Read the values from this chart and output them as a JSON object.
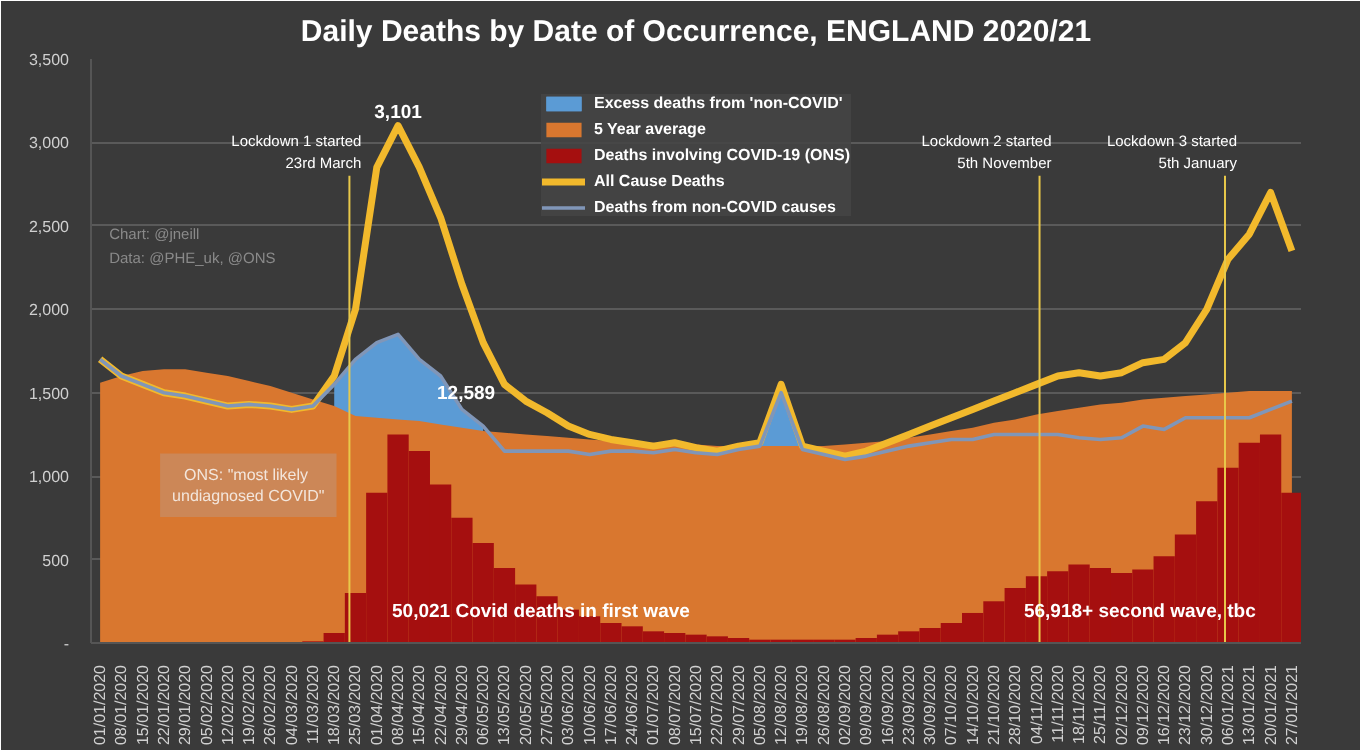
{
  "chart_data": {
    "type": "line",
    "title": "Daily Deaths by Date of Occurrence, ENGLAND 2020/21",
    "x": [
      "2020-01-01",
      "2020-01-08",
      "2020-01-15",
      "2020-01-22",
      "2020-01-29",
      "2020-02-05",
      "2020-02-12",
      "2020-02-19",
      "2020-02-26",
      "2020-03-04",
      "2020-03-11",
      "2020-03-18",
      "2020-03-25",
      "2020-04-01",
      "2020-04-08",
      "2020-04-15",
      "2020-04-22",
      "2020-04-29",
      "2020-05-06",
      "2020-05-13",
      "2020-05-20",
      "2020-05-27",
      "2020-06-03",
      "2020-06-10",
      "2020-06-17",
      "2020-06-24",
      "2020-07-01",
      "2020-07-08",
      "2020-07-15",
      "2020-07-22",
      "2020-07-29",
      "2020-08-05",
      "2020-08-12",
      "2020-08-19",
      "2020-08-26",
      "2020-09-02",
      "2020-09-09",
      "2020-09-16",
      "2020-09-23",
      "2020-09-30",
      "2020-10-07",
      "2020-10-14",
      "2020-10-21",
      "2020-10-28",
      "2020-11-04",
      "2020-11-11",
      "2020-11-18",
      "2020-11-25",
      "2020-12-02",
      "2020-12-09",
      "2020-12-16",
      "2020-12-23",
      "2020-12-30",
      "2021-01-06",
      "2021-01-13",
      "2021-01-20",
      "2021-01-27"
    ],
    "series": [
      {
        "name": "Excess deaths from 'non-COVID'",
        "type": "area",
        "color": "#5b9bd5",
        "values": [
          null,
          null,
          null,
          null,
          null,
          null,
          null,
          null,
          null,
          null,
          null,
          1550,
          1700,
          1800,
          1850,
          1700,
          1600,
          1400,
          1300,
          null,
          null,
          null,
          null,
          null,
          null,
          null,
          null,
          null,
          null,
          null,
          null,
          1200,
          1500,
          1200,
          null,
          null,
          null,
          null,
          null,
          null,
          null,
          null,
          null,
          null,
          null,
          null,
          null,
          null,
          null,
          null,
          null,
          null,
          null,
          null,
          null,
          null,
          null
        ]
      },
      {
        "name": "5 Year average",
        "type": "area",
        "color": "#d9772f",
        "values": [
          1560,
          1600,
          1630,
          1640,
          1640,
          1620,
          1600,
          1570,
          1540,
          1500,
          1460,
          1420,
          1360,
          1350,
          1340,
          1330,
          1310,
          1290,
          1270,
          1260,
          1250,
          1240,
          1230,
          1220,
          1210,
          1200,
          1200,
          1190,
          1190,
          1180,
          1180,
          1180,
          1180,
          1180,
          1180,
          1190,
          1200,
          1210,
          1230,
          1250,
          1270,
          1290,
          1320,
          1340,
          1370,
          1390,
          1410,
          1430,
          1440,
          1460,
          1470,
          1480,
          1490,
          1500,
          1510,
          1510,
          1510
        ]
      },
      {
        "name": "Deaths involving COVID-19 (ONS)",
        "type": "bar",
        "color": "#a50f0f",
        "values": [
          0,
          0,
          0,
          0,
          0,
          0,
          0,
          0,
          0,
          0,
          10,
          60,
          300,
          900,
          1250,
          1150,
          950,
          750,
          600,
          450,
          350,
          280,
          200,
          160,
          120,
          100,
          70,
          60,
          50,
          40,
          30,
          20,
          20,
          20,
          20,
          20,
          30,
          50,
          70,
          90,
          120,
          180,
          250,
          330,
          400,
          430,
          470,
          450,
          420,
          440,
          520,
          650,
          850,
          1050,
          1200,
          1250,
          900
        ]
      },
      {
        "name": "All Cause Deaths",
        "color": "#f2b92c",
        "values": [
          1700,
          1600,
          1550,
          1500,
          1480,
          1450,
          1420,
          1430,
          1420,
          1400,
          1420,
          1600,
          2000,
          2850,
          3101,
          2850,
          2550,
          2150,
          1800,
          1550,
          1450,
          1380,
          1300,
          1250,
          1220,
          1200,
          1180,
          1200,
          1170,
          1150,
          1180,
          1200,
          1550,
          1180,
          1150,
          1120,
          1150,
          1200,
          1250,
          1300,
          1350,
          1400,
          1450,
          1500,
          1550,
          1600,
          1620,
          1600,
          1620,
          1680,
          1700,
          1800,
          2000,
          2300,
          2450,
          2700,
          2350
        ]
      },
      {
        "name": "Deaths from non-COVID causes",
        "color": "#8096b8",
        "values": [
          1700,
          1600,
          1550,
          1500,
          1480,
          1450,
          1420,
          1430,
          1420,
          1400,
          1420,
          1550,
          1700,
          1800,
          1850,
          1700,
          1600,
          1400,
          1300,
          1150,
          1150,
          1150,
          1150,
          1130,
          1150,
          1150,
          1140,
          1160,
          1140,
          1130,
          1160,
          1180,
          1500,
          1160,
          1130,
          1100,
          1120,
          1150,
          1180,
          1200,
          1220,
          1220,
          1250,
          1250,
          1250,
          1250,
          1230,
          1220,
          1230,
          1300,
          1280,
          1350,
          1350,
          1350,
          1350,
          1400,
          1450
        ]
      }
    ],
    "ylim": [
      0,
      3500
    ],
    "yticks": [
      {
        "value": 0,
        "label": "-"
      },
      500,
      {
        "value": 1000,
        "label": "1,000"
      },
      {
        "value": 1500,
        "label": "1,500"
      },
      {
        "value": 2000,
        "label": "2,000"
      },
      {
        "value": 2500,
        "label": "2,500"
      },
      {
        "value": 3000,
        "label": "3,000"
      },
      {
        "value": 3500,
        "label": "3,500"
      }
    ],
    "xlim": [
      "2019-12-29",
      "2021-01-30"
    ],
    "xticks": [
      {
        "value": "2020-01-01",
        "label": "01/01/2020"
      },
      {
        "value": "2020-01-08",
        "label": "08/01/2020"
      },
      {
        "value": "2020-01-15",
        "label": "15/01/2020"
      },
      {
        "value": "2020-01-22",
        "label": "22/01/2020"
      },
      {
        "value": "2020-01-29",
        "label": "29/01/2020"
      },
      {
        "value": "2020-02-05",
        "label": "05/02/2020"
      },
      {
        "value": "2020-02-12",
        "label": "12/02/2020"
      },
      {
        "value": "2020-02-19",
        "label": "19/02/2020"
      },
      {
        "value": "2020-02-26",
        "label": "26/02/2020"
      },
      {
        "value": "2020-03-04",
        "label": "04/03/2020"
      },
      {
        "value": "2020-03-11",
        "label": "11/03/2020"
      },
      {
        "value": "2020-03-18",
        "label": "18/03/2020"
      },
      {
        "value": "2020-03-25",
        "label": "25/03/2020"
      },
      {
        "value": "2020-04-01",
        "label": "01/04/2020"
      },
      {
        "value": "2020-04-08",
        "label": "08/04/2020"
      },
      {
        "value": "2020-04-15",
        "label": "15/04/2020"
      },
      {
        "value": "2020-04-22",
        "label": "22/04/2020"
      },
      {
        "value": "2020-04-29",
        "label": "29/04/2020"
      },
      {
        "value": "2020-05-06",
        "label": "06/05/2020"
      },
      {
        "value": "2020-05-13",
        "label": "13/05/2020"
      },
      {
        "value": "2020-05-20",
        "label": "20/05/2020"
      },
      {
        "value": "2020-05-27",
        "label": "27/05/2020"
      },
      {
        "value": "2020-06-03",
        "label": "03/06/2020"
      },
      {
        "value": "2020-06-10",
        "label": "10/06/2020"
      },
      {
        "value": "2020-06-17",
        "label": "17/06/2020"
      },
      {
        "value": "2020-06-24",
        "label": "24/06/2020"
      },
      {
        "value": "2020-07-01",
        "label": "01/07/2020"
      },
      {
        "value": "2020-07-08",
        "label": "08/07/2020"
      },
      {
        "value": "2020-07-15",
        "label": "15/07/2020"
      },
      {
        "value": "2020-07-22",
        "label": "22/07/2020"
      },
      {
        "value": "2020-07-29",
        "label": "29/07/2020"
      },
      {
        "value": "2020-08-05",
        "label": "05/08/2020"
      },
      {
        "value": "2020-08-12",
        "label": "12/08/2020"
      },
      {
        "value": "2020-08-19",
        "label": "19/08/2020"
      },
      {
        "value": "2020-08-26",
        "label": "26/08/2020"
      },
      {
        "value": "2020-09-02",
        "label": "02/09/2020"
      },
      {
        "value": "2020-09-09",
        "label": "09/09/2020"
      },
      {
        "value": "2020-09-16",
        "label": "16/09/2020"
      },
      {
        "value": "2020-09-23",
        "label": "23/09/2020"
      },
      {
        "value": "2020-09-30",
        "label": "30/09/2020"
      },
      {
        "value": "2020-10-07",
        "label": "07/10/2020"
      },
      {
        "value": "2020-10-14",
        "label": "14/10/2020"
      },
      {
        "value": "2020-10-21",
        "label": "21/10/2020"
      },
      {
        "value": "2020-10-28",
        "label": "28/10/2020"
      },
      {
        "value": "2020-11-04",
        "label": "04/11/2020"
      },
      {
        "value": "2020-11-11",
        "label": "11/11/2020"
      },
      {
        "value": "2020-11-18",
        "label": "18/11/2020"
      },
      {
        "value": "2020-11-25",
        "label": "25/11/2020"
      },
      {
        "value": "2020-12-02",
        "label": "02/12/2020"
      },
      {
        "value": "2020-12-09",
        "label": "09/12/2020"
      },
      {
        "value": "2020-12-16",
        "label": "16/12/2020"
      },
      {
        "value": "2020-12-23",
        "label": "23/12/2020"
      },
      {
        "value": "2020-12-30",
        "label": "30/12/2020"
      },
      {
        "value": "2021-01-06",
        "label": "06/01/2021"
      },
      {
        "value": "2021-01-13",
        "label": "13/01/2021"
      },
      {
        "value": "2021-01-20",
        "label": "20/01/2021"
      },
      {
        "value": "2021-01-27",
        "label": "27/01/2021"
      }
    ],
    "ref_lines": [
      {
        "axis": "x",
        "value": "2020-03-23",
        "label": "Lockdown 1 started\n23rd March",
        "color": "#e8c84a"
      },
      {
        "axis": "x",
        "value": "2020-11-05",
        "label": "Lockdown 2 started\n5th November",
        "color": "#e8c84a"
      },
      {
        "axis": "x",
        "value": "2021-01-05",
        "label": "Lockdown 3 started\n5th January",
        "color": "#e8c84a"
      }
    ],
    "annotations": [
      {
        "text": "3,101",
        "x": "2020-04-08",
        "y": 3101
      },
      "12,589",
      "ONS:  \"most likely\nundiagnosed COVID\"",
      {
        "text": "50,021 Covid deaths in first wave",
        "x": "2020-05-25",
        "y": 70
      },
      {
        "text": "56,918+ second wave, tbc",
        "x": "2020-12-08",
        "y": 70
      },
      "Chart: @jneill",
      "Data: @PHE_uk, @ONS"
    ],
    "grid": "y",
    "legend": "top"
  }
}
